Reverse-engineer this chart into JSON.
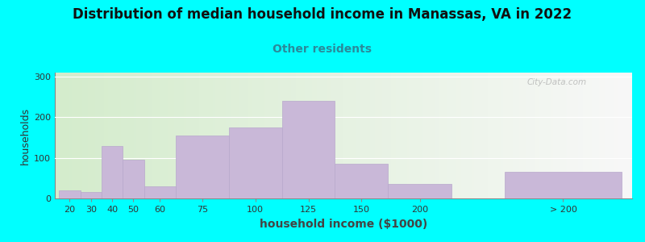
{
  "title": "Distribution of median household income in Manassas, VA in 2022",
  "subtitle": "Other residents",
  "xlabel": "household income ($1000)",
  "ylabel": "households",
  "background_color": "#00FFFF",
  "plot_bg_gradient_left": "#d4eccc",
  "plot_bg_gradient_right": "#f8f8f8",
  "bar_color": "#c9b8d8",
  "bar_edge_color": "#b8a8cc",
  "title_fontsize": 12,
  "subtitle_fontsize": 10,
  "subtitle_color": "#2a8a9a",
  "ylabel_fontsize": 9,
  "xlabel_fontsize": 10,
  "tick_labels": [
    "20",
    "30",
    "40",
    "50",
    "60",
    "75",
    "100",
    "125",
    "150",
    "200",
    "> 200"
  ],
  "bar_lefts": [
    15,
    25,
    35,
    45,
    55,
    70,
    95,
    120,
    145,
    170,
    225
  ],
  "bar_widths": [
    10,
    10,
    10,
    10,
    15,
    25,
    25,
    25,
    25,
    30,
    55
  ],
  "bar_heights": [
    20,
    15,
    130,
    95,
    30,
    155,
    175,
    240,
    85,
    35,
    65
  ],
  "xlim": [
    13,
    285
  ],
  "ylim": [
    0,
    310
  ],
  "yticks": [
    0,
    100,
    200,
    300
  ],
  "watermark": "City-Data.com"
}
